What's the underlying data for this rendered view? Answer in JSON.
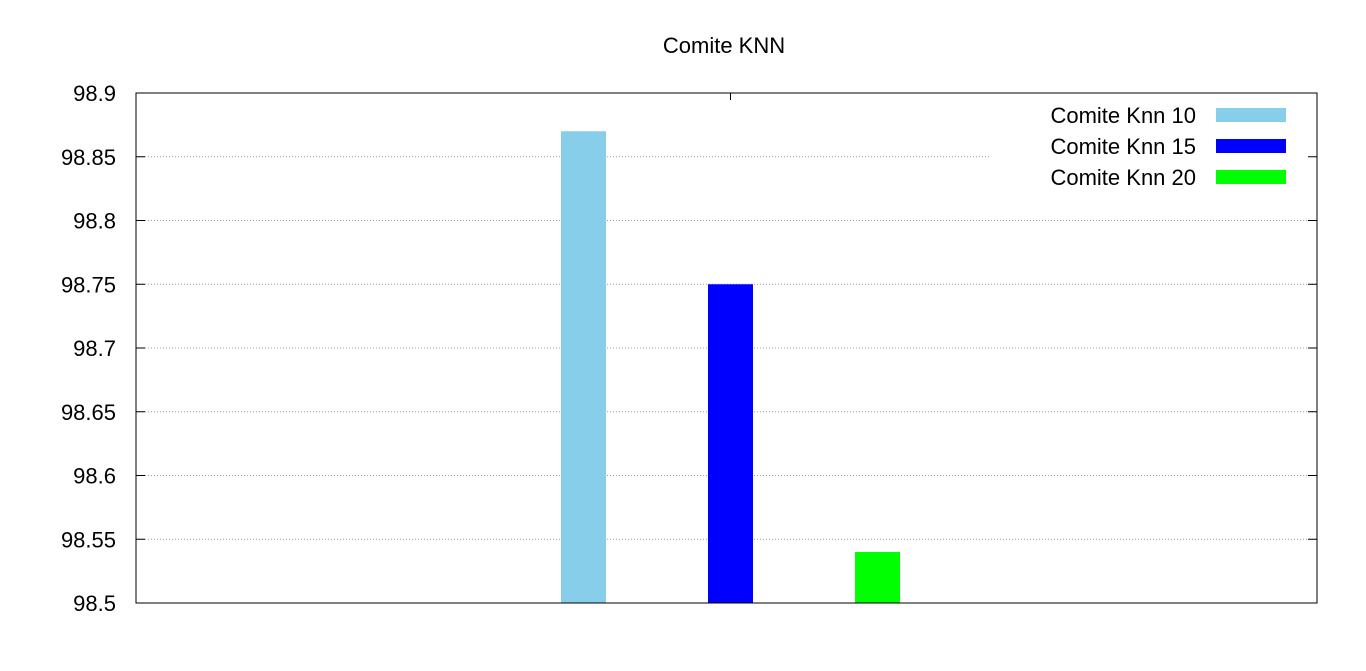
{
  "chart_data": {
    "type": "bar",
    "title": "Comite KNN",
    "xlabel": "",
    "ylabel": "",
    "ylim": [
      98.5,
      98.9
    ],
    "yticks": [
      98.5,
      98.55,
      98.6,
      98.65,
      98.7,
      98.75,
      98.8,
      98.85,
      98.9
    ],
    "ytick_labels": [
      "98.5",
      "98.55",
      "98.6",
      "98.65",
      "98.7",
      "98.75",
      "98.8",
      "98.85",
      "98.9"
    ],
    "grid": true,
    "legend_position": "top-right",
    "series": [
      {
        "name": "Comite Knn 10",
        "value": 98.87,
        "color": "#87CEEB"
      },
      {
        "name": "Comite Knn 15",
        "value": 98.75,
        "color": "#0000FF"
      },
      {
        "name": "Comite Knn 20",
        "value": 98.54,
        "color": "#00FF00"
      }
    ]
  }
}
